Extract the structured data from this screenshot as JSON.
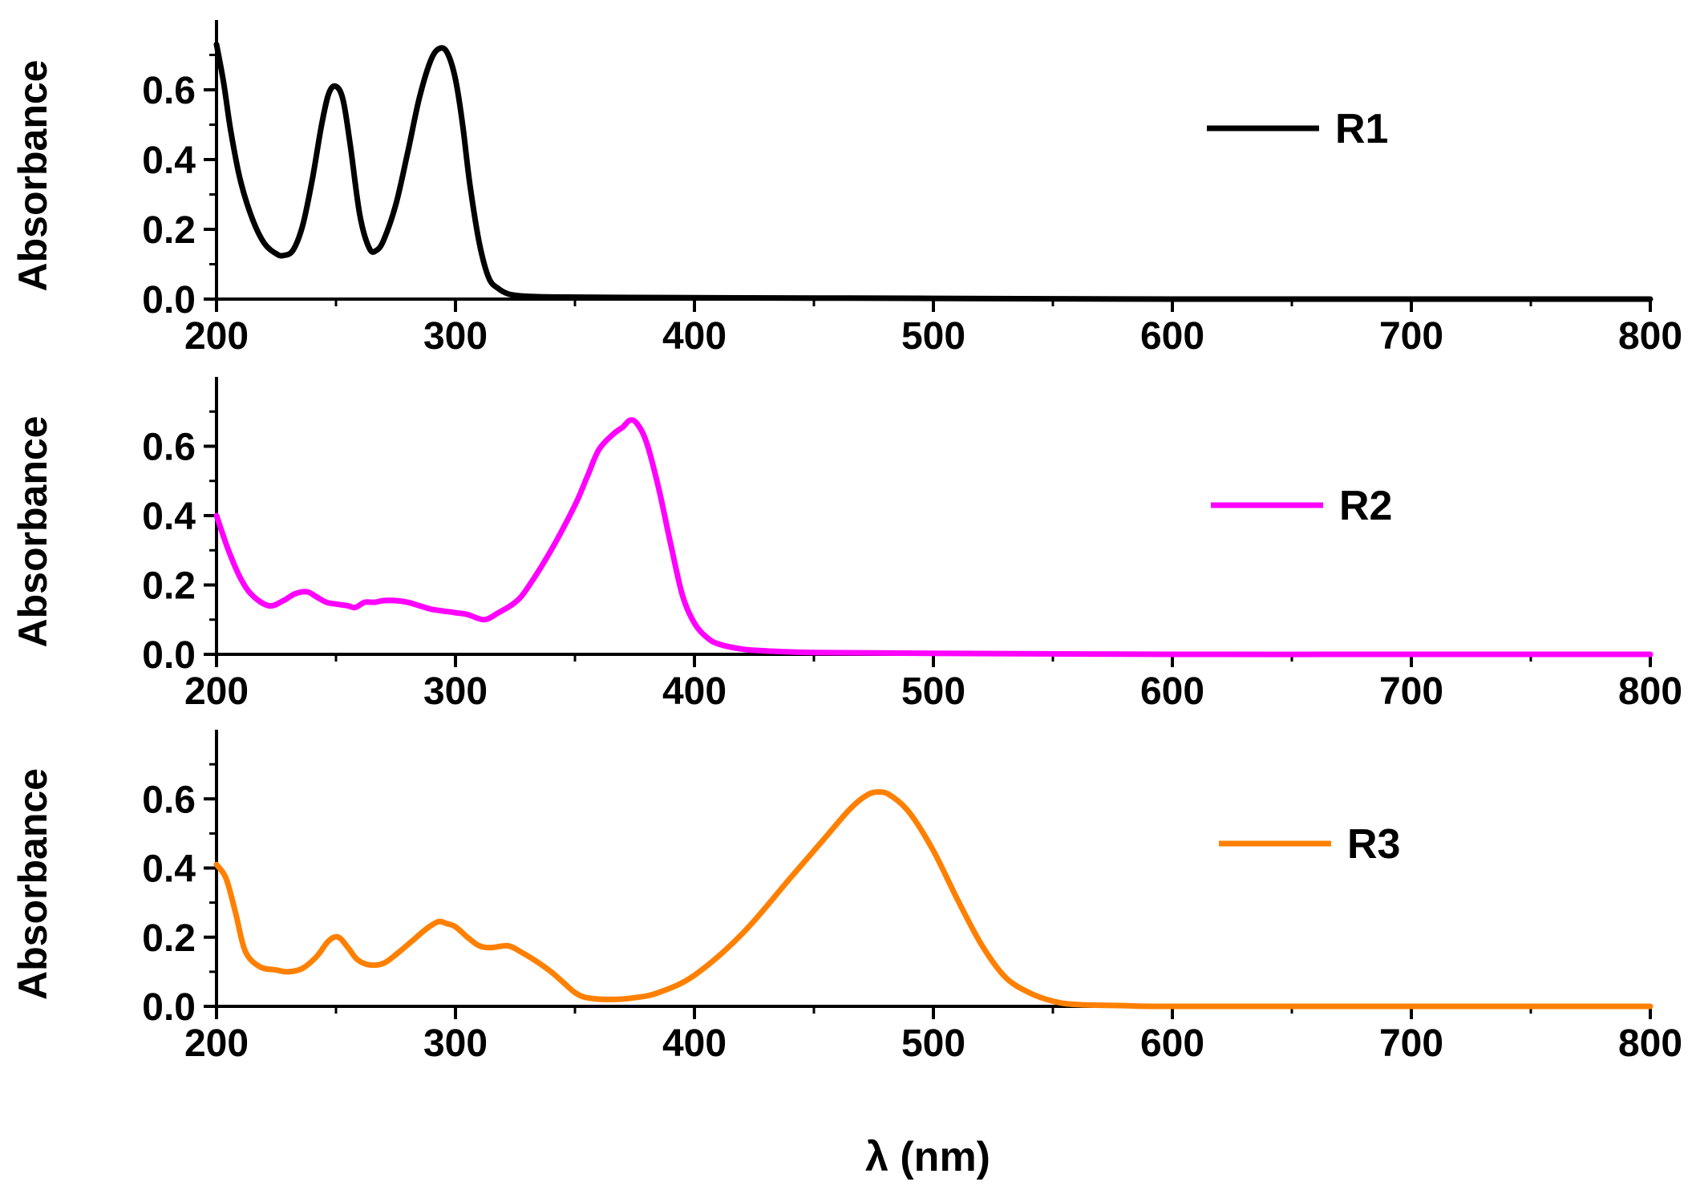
{
  "chart_data": {
    "type": "line",
    "shared_xlabel": "λ (nm)",
    "panels": [
      {
        "name": "R1",
        "ylabel": "Absorbance",
        "color": "#000000",
        "xlim": [
          200,
          800
        ],
        "ylim": [
          0.0,
          0.8
        ],
        "xticks": [
          200,
          300,
          400,
          500,
          600,
          700,
          800
        ],
        "xtick_labels": [
          "200",
          "300",
          "400",
          "500",
          "600",
          "700",
          "800"
        ],
        "yticks": [
          0.0,
          0.2,
          0.4,
          0.6
        ],
        "ytick_labels": [
          "0.0",
          "0.2",
          "0.4",
          "0.6"
        ],
        "legend": "R1",
        "legend_position": "upper-center-right",
        "x": [
          200,
          203,
          206,
          210,
          215,
          220,
          225,
          228,
          232,
          236,
          240,
          244,
          247,
          250,
          253,
          256,
          260,
          264,
          267,
          270,
          275,
          280,
          285,
          290,
          294,
          297,
          300,
          303,
          306,
          310,
          314,
          318,
          322,
          326,
          330,
          340,
          360,
          400,
          500,
          600,
          700,
          800
        ],
        "y": [
          0.73,
          0.62,
          0.48,
          0.34,
          0.23,
          0.16,
          0.13,
          0.125,
          0.14,
          0.21,
          0.34,
          0.5,
          0.59,
          0.61,
          0.57,
          0.44,
          0.24,
          0.145,
          0.14,
          0.17,
          0.27,
          0.42,
          0.58,
          0.69,
          0.72,
          0.7,
          0.63,
          0.5,
          0.33,
          0.16,
          0.06,
          0.03,
          0.015,
          0.01,
          0.008,
          0.006,
          0.005,
          0.004,
          0.002,
          0.0,
          0.0,
          0.0
        ]
      },
      {
        "name": "R2",
        "ylabel": "Absorbance",
        "color": "#FF00FF",
        "xlim": [
          200,
          800
        ],
        "ylim": [
          0.0,
          0.8
        ],
        "xticks": [
          200,
          300,
          400,
          500,
          600,
          700,
          800
        ],
        "xtick_labels": [
          "200",
          "300",
          "400",
          "500",
          "600",
          "700",
          "800"
        ],
        "yticks": [
          0.0,
          0.2,
          0.4,
          0.6
        ],
        "ytick_labels": [
          "0.0",
          "0.2",
          "0.4",
          "0.6"
        ],
        "legend": "R2",
        "legend_position": "center-right",
        "x": [
          200,
          205,
          210,
          215,
          222,
          228,
          233,
          238,
          242,
          246,
          250,
          255,
          258,
          262,
          266,
          270,
          275,
          280,
          285,
          290,
          300,
          305,
          312,
          318,
          325,
          330,
          340,
          350,
          355,
          360,
          366,
          370,
          373,
          376,
          380,
          385,
          390,
          395,
          400,
          405,
          410,
          420,
          430,
          450,
          500,
          600,
          700,
          800
        ],
        "y": [
          0.4,
          0.3,
          0.22,
          0.17,
          0.14,
          0.155,
          0.175,
          0.18,
          0.165,
          0.15,
          0.145,
          0.14,
          0.135,
          0.15,
          0.15,
          0.155,
          0.155,
          0.15,
          0.14,
          0.13,
          0.12,
          0.115,
          0.1,
          0.12,
          0.15,
          0.19,
          0.3,
          0.43,
          0.51,
          0.59,
          0.635,
          0.655,
          0.675,
          0.665,
          0.61,
          0.48,
          0.32,
          0.17,
          0.09,
          0.05,
          0.03,
          0.015,
          0.01,
          0.005,
          0.003,
          0.0,
          0.0,
          0.0
        ]
      },
      {
        "name": "R3",
        "ylabel": "Absorbance",
        "color": "#FF8000",
        "xlim": [
          200,
          800
        ],
        "ylim": [
          0.0,
          0.8
        ],
        "xticks": [
          200,
          300,
          400,
          500,
          600,
          700,
          800
        ],
        "xtick_labels": [
          "200",
          "300",
          "400",
          "500",
          "600",
          "700",
          "800"
        ],
        "yticks": [
          0.0,
          0.2,
          0.4,
          0.6
        ],
        "ytick_labels": [
          "0.0",
          "0.2",
          "0.4",
          "0.6"
        ],
        "legend": "R3",
        "legend_position": "center-right",
        "x": [
          200,
          204,
          208,
          212,
          218,
          225,
          230,
          236,
          242,
          247,
          251,
          255,
          259,
          264,
          270,
          276,
          282,
          288,
          293,
          296,
          300,
          305,
          310,
          315,
          322,
          328,
          335,
          340,
          345,
          350,
          355,
          365,
          375,
          385,
          400,
          420,
          440,
          455,
          465,
          472,
          477,
          482,
          490,
          500,
          510,
          520,
          530,
          540,
          550,
          560,
          580,
          600,
          700,
          800
        ],
        "y": [
          0.41,
          0.37,
          0.27,
          0.16,
          0.115,
          0.105,
          0.1,
          0.11,
          0.145,
          0.19,
          0.2,
          0.17,
          0.135,
          0.12,
          0.125,
          0.155,
          0.19,
          0.225,
          0.245,
          0.24,
          0.23,
          0.2,
          0.175,
          0.17,
          0.175,
          0.155,
          0.125,
          0.1,
          0.07,
          0.04,
          0.025,
          0.02,
          0.025,
          0.04,
          0.09,
          0.21,
          0.37,
          0.49,
          0.57,
          0.61,
          0.62,
          0.61,
          0.56,
          0.45,
          0.31,
          0.18,
          0.085,
          0.04,
          0.015,
          0.005,
          0.002,
          0.0,
          0.0,
          0.0
        ]
      }
    ]
  }
}
